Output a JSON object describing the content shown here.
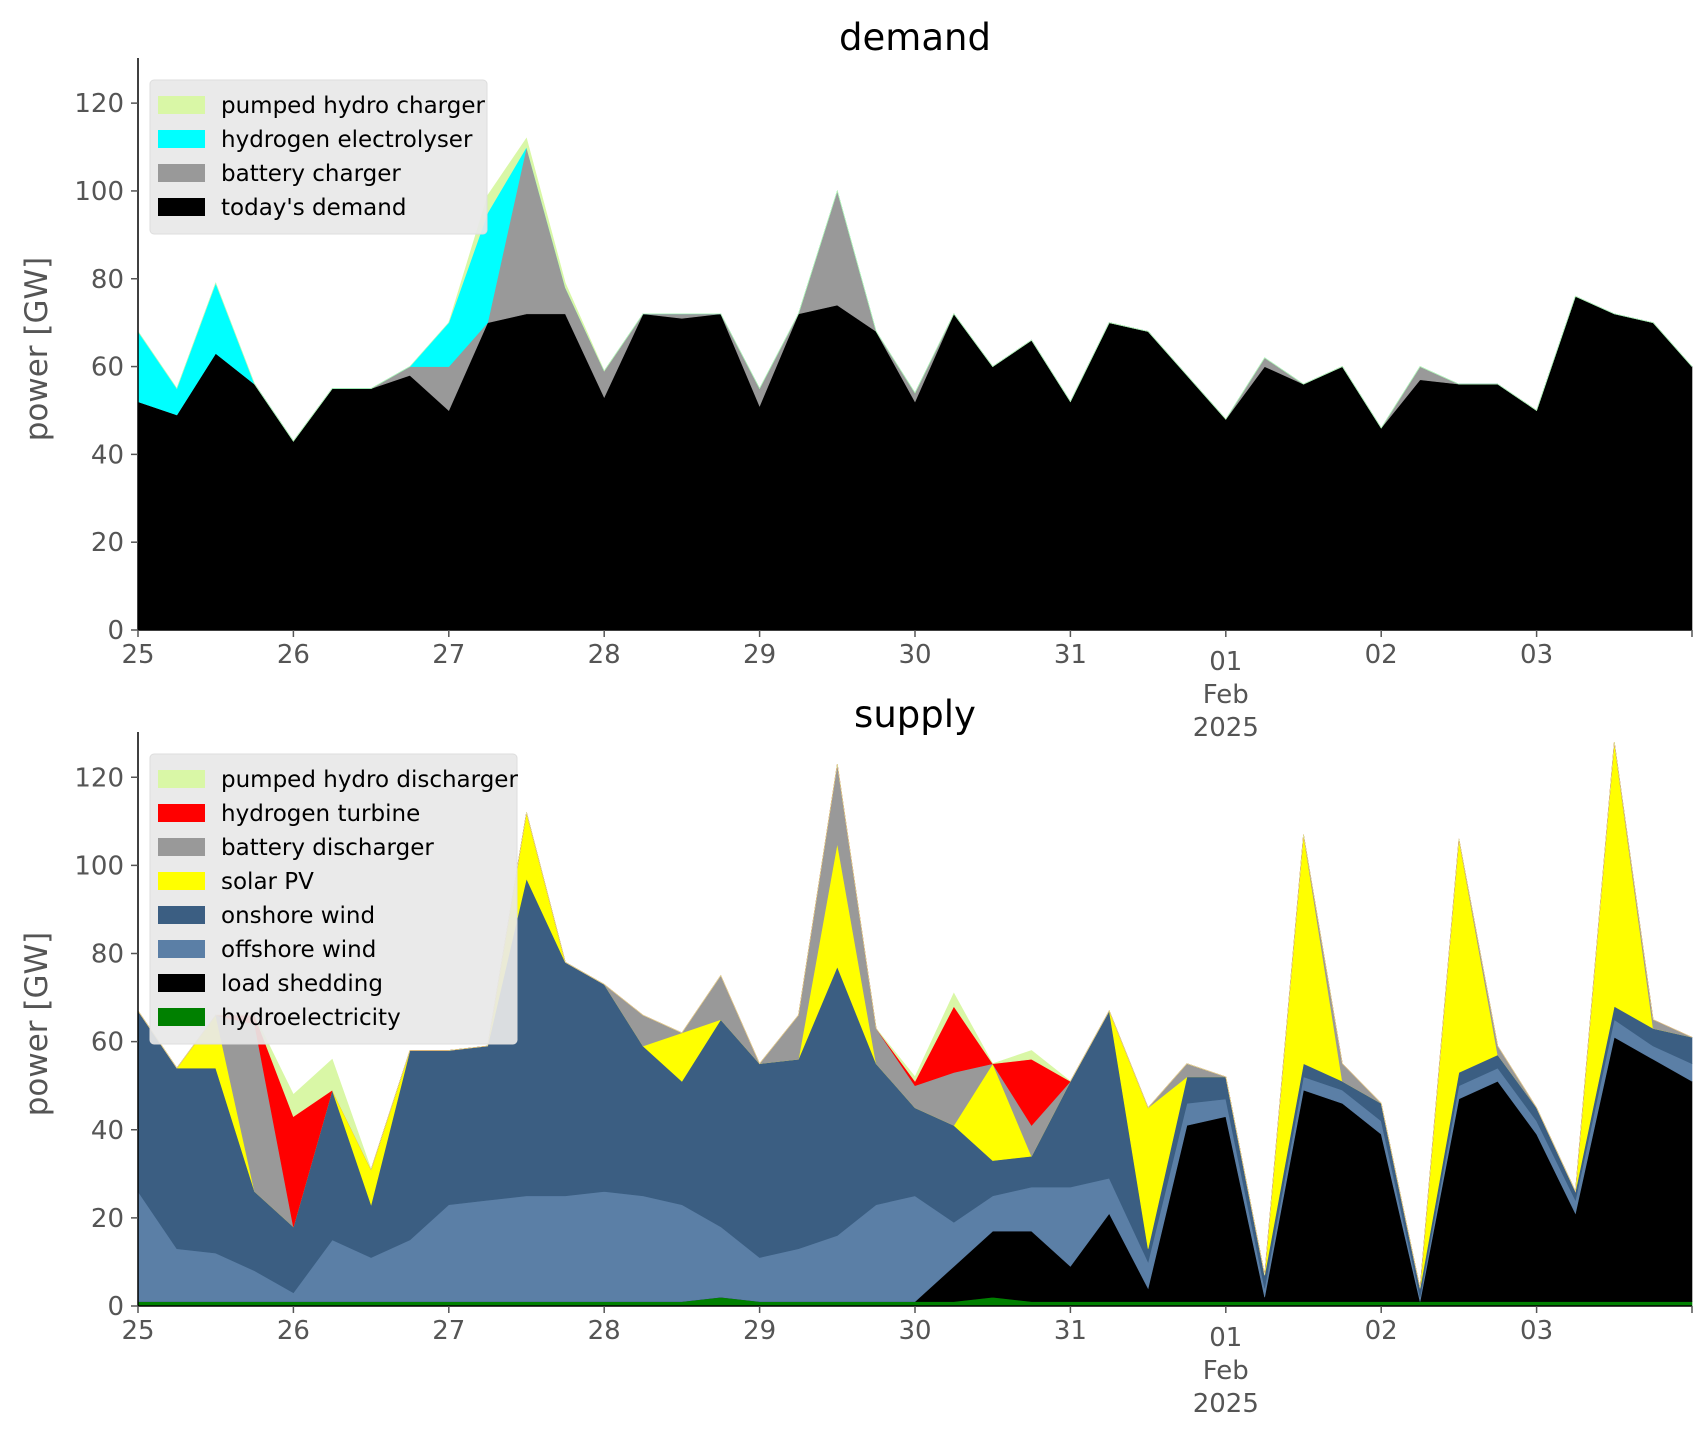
{
  "chart_data": [
    {
      "type": "area",
      "title": "demand",
      "xlabel": "",
      "ylabel": "power [GW]",
      "xlim": [
        "2025-01-25",
        "2025-02-04"
      ],
      "ylim": [
        0,
        128
      ],
      "yticks": [
        0,
        20,
        40,
        60,
        80,
        100,
        120
      ],
      "xticks": [
        {
          "value": "2025-01-25",
          "label": "25",
          "sub": []
        },
        {
          "value": "2025-01-26",
          "label": "26",
          "sub": []
        },
        {
          "value": "2025-01-27",
          "label": "27",
          "sub": []
        },
        {
          "value": "2025-01-28",
          "label": "28",
          "sub": []
        },
        {
          "value": "2025-01-29",
          "label": "29",
          "sub": []
        },
        {
          "value": "2025-01-30",
          "label": "30",
          "sub": []
        },
        {
          "value": "2025-01-31",
          "label": "31",
          "sub": []
        },
        {
          "value": "2025-02-01",
          "label": "01",
          "sub": [
            "Feb",
            "2025"
          ]
        },
        {
          "value": "2025-02-02",
          "label": "02",
          "sub": []
        },
        {
          "value": "2025-02-03",
          "label": "03",
          "sub": []
        }
      ],
      "grid": false,
      "legend_position": "top-left",
      "stacking": "cumulative, first series at bottom; values are per-series GW at each time",
      "x": [
        "2025-01-25 00:00",
        "2025-01-25 06:00",
        "2025-01-25 12:00",
        "2025-01-25 18:00",
        "2025-01-26 00:00",
        "2025-01-26 06:00",
        "2025-01-26 12:00",
        "2025-01-26 18:00",
        "2025-01-27 00:00",
        "2025-01-27 06:00",
        "2025-01-27 12:00",
        "2025-01-27 18:00",
        "2025-01-28 00:00",
        "2025-01-28 06:00",
        "2025-01-28 12:00",
        "2025-01-28 18:00",
        "2025-01-29 00:00",
        "2025-01-29 06:00",
        "2025-01-29 12:00",
        "2025-01-29 18:00",
        "2025-01-30 00:00",
        "2025-01-30 06:00",
        "2025-01-30 12:00",
        "2025-01-30 18:00",
        "2025-01-31 00:00",
        "2025-01-31 06:00",
        "2025-01-31 12:00",
        "2025-01-31 18:00",
        "2025-02-01 00:00",
        "2025-02-01 06:00",
        "2025-02-01 12:00",
        "2025-02-01 18:00",
        "2025-02-02 00:00",
        "2025-02-02 06:00",
        "2025-02-02 12:00",
        "2025-02-02 18:00",
        "2025-02-03 00:00",
        "2025-02-03 06:00",
        "2025-02-03 12:00",
        "2025-02-03 18:00",
        "2025-02-04 00:00"
      ],
      "series": [
        {
          "name": "today's demand",
          "color": "#000000",
          "values": [
            52,
            49,
            63,
            56,
            43,
            55,
            55,
            58,
            50,
            70,
            72,
            72,
            53,
            72,
            71,
            72,
            51,
            72,
            74,
            68,
            52,
            72,
            60,
            66,
            52,
            70,
            68,
            58,
            48,
            60,
            56,
            60,
            46,
            57,
            56,
            56,
            50,
            76,
            72,
            70,
            60
          ]
        },
        {
          "name": "battery charger",
          "color": "#999999",
          "values": [
            0,
            0,
            0,
            0,
            0,
            0,
            0,
            2,
            10,
            0,
            38,
            6,
            6,
            0,
            1,
            0,
            4,
            0,
            26,
            0,
            2,
            0,
            0,
            0,
            0,
            0,
            0,
            0,
            0,
            2,
            0,
            0,
            0,
            3,
            0,
            0,
            0,
            0,
            0,
            0,
            0
          ]
        },
        {
          "name": "hydrogen electrolyser",
          "color": "#00ffff",
          "values": [
            16,
            6,
            16,
            0,
            0,
            0,
            0,
            0,
            10,
            25,
            0,
            0,
            0,
            0,
            0,
            0,
            0,
            0,
            0,
            0,
            0,
            0,
            0,
            0,
            0,
            0,
            0,
            0,
            0,
            0,
            0,
            0,
            0,
            0,
            0,
            0,
            0,
            0,
            0,
            0,
            0
          ]
        },
        {
          "name": "pumped hydro charger",
          "color": "#d9f7a6",
          "values": [
            0,
            0,
            0,
            0,
            0,
            0,
            0,
            0,
            0,
            4,
            2,
            1,
            0,
            0,
            0,
            0,
            0,
            0,
            0,
            0,
            0,
            0,
            0,
            0,
            0,
            0,
            0,
            0,
            0,
            0,
            0,
            0,
            0,
            0,
            0,
            0,
            0,
            0,
            0,
            0,
            0
          ]
        }
      ]
    },
    {
      "type": "area",
      "title": "supply",
      "xlabel": "",
      "ylabel": "power [GW]",
      "xlim": [
        "2025-01-25",
        "2025-02-04"
      ],
      "ylim": [
        0,
        128
      ],
      "yticks": [
        0,
        20,
        40,
        60,
        80,
        100,
        120
      ],
      "xticks": [
        {
          "value": "2025-01-25",
          "label": "25",
          "sub": []
        },
        {
          "value": "2025-01-26",
          "label": "26",
          "sub": []
        },
        {
          "value": "2025-01-27",
          "label": "27",
          "sub": []
        },
        {
          "value": "2025-01-28",
          "label": "28",
          "sub": []
        },
        {
          "value": "2025-01-29",
          "label": "29",
          "sub": []
        },
        {
          "value": "2025-01-30",
          "label": "30",
          "sub": []
        },
        {
          "value": "2025-01-31",
          "label": "31",
          "sub": []
        },
        {
          "value": "2025-02-01",
          "label": "01",
          "sub": [
            "Feb",
            "2025"
          ]
        },
        {
          "value": "2025-02-02",
          "label": "02",
          "sub": []
        },
        {
          "value": "2025-02-03",
          "label": "03",
          "sub": []
        }
      ],
      "grid": false,
      "legend_position": "top-left",
      "stacking": "cumulative, first series at bottom; values are per-series GW at each time",
      "x": [
        "2025-01-25 00:00",
        "2025-01-25 06:00",
        "2025-01-25 12:00",
        "2025-01-25 18:00",
        "2025-01-26 00:00",
        "2025-01-26 06:00",
        "2025-01-26 12:00",
        "2025-01-26 18:00",
        "2025-01-27 00:00",
        "2025-01-27 06:00",
        "2025-01-27 12:00",
        "2025-01-27 18:00",
        "2025-01-28 00:00",
        "2025-01-28 06:00",
        "2025-01-28 12:00",
        "2025-01-28 18:00",
        "2025-01-29 00:00",
        "2025-01-29 06:00",
        "2025-01-29 12:00",
        "2025-01-29 18:00",
        "2025-01-30 00:00",
        "2025-01-30 06:00",
        "2025-01-30 12:00",
        "2025-01-30 18:00",
        "2025-01-31 00:00",
        "2025-01-31 06:00",
        "2025-01-31 12:00",
        "2025-01-31 18:00",
        "2025-02-01 00:00",
        "2025-02-01 06:00",
        "2025-02-01 12:00",
        "2025-02-01 18:00",
        "2025-02-02 00:00",
        "2025-02-02 06:00",
        "2025-02-02 12:00",
        "2025-02-02 18:00",
        "2025-02-03 00:00",
        "2025-02-03 06:00",
        "2025-02-03 12:00",
        "2025-02-03 18:00",
        "2025-02-04 00:00"
      ],
      "series": [
        {
          "name": "hydroelectricity",
          "color": "#008000",
          "values": [
            1,
            1,
            1,
            1,
            1,
            1,
            1,
            1,
            1,
            1,
            1,
            1,
            1,
            1,
            1,
            2,
            1,
            1,
            1,
            1,
            1,
            1,
            2,
            1,
            1,
            1,
            1,
            1,
            1,
            1,
            1,
            1,
            1,
            1,
            1,
            1,
            1,
            1,
            1,
            1,
            1
          ]
        },
        {
          "name": "load shedding",
          "color": "#000000",
          "values": [
            0,
            0,
            0,
            0,
            0,
            0,
            0,
            0,
            0,
            0,
            0,
            0,
            0,
            0,
            0,
            0,
            0,
            0,
            0,
            0,
            0,
            8,
            15,
            16,
            8,
            20,
            3,
            40,
            42,
            1,
            48,
            45,
            38,
            0,
            46,
            50,
            38,
            20,
            60,
            55,
            50
          ]
        },
        {
          "name": "offshore wind",
          "color": "#5b7fa6",
          "values": [
            25,
            12,
            11,
            7,
            2,
            14,
            10,
            14,
            22,
            23,
            24,
            24,
            25,
            24,
            22,
            16,
            10,
            12,
            15,
            22,
            24,
            10,
            8,
            10,
            18,
            8,
            6,
            5,
            4,
            2,
            3,
            3,
            3,
            1,
            3,
            3,
            3,
            3,
            4,
            3,
            4
          ]
        },
        {
          "name": "onshore wind",
          "color": "#3b5e82",
          "values": [
            41,
            41,
            42,
            18,
            15,
            34,
            12,
            43,
            35,
            35,
            72,
            53,
            47,
            34,
            28,
            47,
            44,
            43,
            61,
            32,
            20,
            22,
            8,
            7,
            24,
            38,
            3,
            6,
            5,
            3,
            3,
            2,
            4,
            2,
            3,
            3,
            3,
            2,
            3,
            4,
            6
          ]
        },
        {
          "name": "solar PV",
          "color": "#ffff00",
          "values": [
            0,
            0,
            12,
            0,
            0,
            0,
            8,
            0,
            0,
            0,
            15,
            0,
            0,
            0,
            11,
            0,
            0,
            0,
            28,
            0,
            0,
            0,
            22,
            0,
            0,
            0,
            32,
            0,
            0,
            0,
            52,
            0,
            0,
            0,
            53,
            0,
            0,
            0,
            60,
            0,
            0
          ]
        },
        {
          "name": "battery discharger",
          "color": "#999999",
          "values": [
            0,
            0,
            0,
            38,
            0,
            0,
            0,
            0,
            0,
            0,
            0,
            0,
            0,
            7,
            0,
            10,
            0,
            10,
            18,
            8,
            5,
            12,
            0,
            7,
            0,
            0,
            0,
            3,
            0,
            0,
            0,
            4,
            0,
            0,
            0,
            2,
            0,
            0,
            0,
            2,
            0
          ]
        },
        {
          "name": "hydrogen turbine",
          "color": "#ff0000",
          "values": [
            0,
            0,
            0,
            2,
            25,
            0,
            0,
            0,
            0,
            0,
            0,
            0,
            0,
            0,
            0,
            0,
            0,
            0,
            0,
            0,
            1,
            15,
            0,
            15,
            0,
            0,
            0,
            0,
            0,
            0,
            0,
            0,
            0,
            0,
            0,
            0,
            0,
            0,
            0,
            0,
            0
          ]
        },
        {
          "name": "pumped hydro discharger",
          "color": "#d9f7a6",
          "values": [
            0,
            0,
            0,
            0,
            5,
            7,
            0,
            0,
            0,
            0,
            0,
            0,
            0,
            0,
            0,
            0,
            0,
            0,
            0,
            0,
            1,
            3,
            0,
            2,
            0,
            0,
            0,
            0,
            0,
            0,
            0,
            0,
            0,
            0,
            0,
            0,
            0,
            0,
            0,
            0,
            0
          ]
        }
      ]
    }
  ]
}
